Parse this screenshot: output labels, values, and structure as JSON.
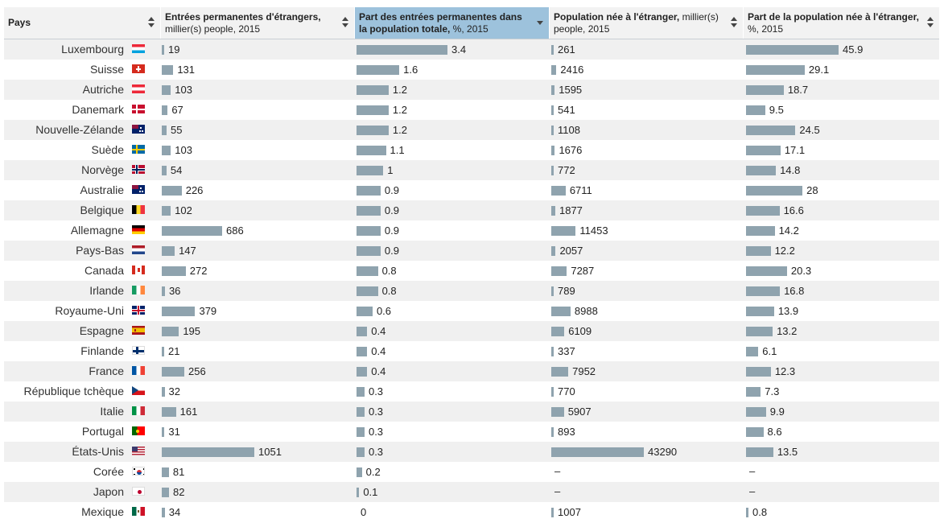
{
  "header": {
    "country": "Pays",
    "col1_bold": "Entrées permanentes d'étrangers,",
    "col1_rest": "millier(s) people, 2015",
    "col2_bold": "Part des entrées permanentes dans la population totale,",
    "col2_rest": " %, 2015",
    "col3_bold": "Population née à l'étranger,",
    "col3_rest": " millier(s) people, 2015",
    "col4_bold": "Part de la population née à l'étranger,",
    "col4_rest": "%, 2015"
  },
  "colors": {
    "bar": "#8fa3ae",
    "active_header": "#9dc2dc"
  },
  "rows": [
    {
      "name": "Luxembourg",
      "flag": "luxembourg-flag",
      "v1": "19",
      "v2": "3.4",
      "v3": "261",
      "v4": "45.9"
    },
    {
      "name": "Suisse",
      "flag": "switzerland-flag",
      "v1": "131",
      "v2": "1.6",
      "v3": "2416",
      "v4": "29.1"
    },
    {
      "name": "Autriche",
      "flag": "austria-flag",
      "v1": "103",
      "v2": "1.2",
      "v3": "1595",
      "v4": "18.7"
    },
    {
      "name": "Danemark",
      "flag": "denmark-flag",
      "v1": "67",
      "v2": "1.2",
      "v3": "541",
      "v4": "9.5"
    },
    {
      "name": "Nouvelle-Zélande",
      "flag": "new-zealand-flag",
      "v1": "55",
      "v2": "1.2",
      "v3": "1108",
      "v4": "24.5"
    },
    {
      "name": "Suède",
      "flag": "sweden-flag",
      "v1": "103",
      "v2": "1.1",
      "v3": "1676",
      "v4": "17.1"
    },
    {
      "name": "Norvège",
      "flag": "norway-flag",
      "v1": "54",
      "v2": "1",
      "v3": "772",
      "v4": "14.8"
    },
    {
      "name": "Australie",
      "flag": "australia-flag",
      "v1": "226",
      "v2": "0.9",
      "v3": "6711",
      "v4": "28"
    },
    {
      "name": "Belgique",
      "flag": "belgium-flag",
      "v1": "102",
      "v2": "0.9",
      "v3": "1877",
      "v4": "16.6"
    },
    {
      "name": "Allemagne",
      "flag": "germany-flag",
      "v1": "686",
      "v2": "0.9",
      "v3": "11453",
      "v4": "14.2"
    },
    {
      "name": "Pays-Bas",
      "flag": "netherlands-flag",
      "v1": "147",
      "v2": "0.9",
      "v3": "2057",
      "v4": "12.2"
    },
    {
      "name": "Canada",
      "flag": "canada-flag",
      "v1": "272",
      "v2": "0.8",
      "v3": "7287",
      "v4": "20.3"
    },
    {
      "name": "Irlande",
      "flag": "ireland-flag",
      "v1": "36",
      "v2": "0.8",
      "v3": "789",
      "v4": "16.8"
    },
    {
      "name": "Royaume-Uni",
      "flag": "uk-flag",
      "v1": "379",
      "v2": "0.6",
      "v3": "8988",
      "v4": "13.9"
    },
    {
      "name": "Espagne",
      "flag": "spain-flag",
      "v1": "195",
      "v2": "0.4",
      "v3": "6109",
      "v4": "13.2"
    },
    {
      "name": "Finlande",
      "flag": "finland-flag",
      "v1": "21",
      "v2": "0.4",
      "v3": "337",
      "v4": "6.1"
    },
    {
      "name": "France",
      "flag": "france-flag",
      "v1": "256",
      "v2": "0.4",
      "v3": "7952",
      "v4": "12.3"
    },
    {
      "name": "République tchèque",
      "flag": "czech-flag",
      "v1": "32",
      "v2": "0.3",
      "v3": "770",
      "v4": "7.3"
    },
    {
      "name": "Italie",
      "flag": "italy-flag",
      "v1": "161",
      "v2": "0.3",
      "v3": "5907",
      "v4": "9.9"
    },
    {
      "name": "Portugal",
      "flag": "portugal-flag",
      "v1": "31",
      "v2": "0.3",
      "v3": "893",
      "v4": "8.6"
    },
    {
      "name": "États-Unis",
      "flag": "usa-flag",
      "v1": "1051",
      "v2": "0.3",
      "v3": "43290",
      "v4": "13.5"
    },
    {
      "name": "Corée",
      "flag": "korea-flag",
      "v1": "81",
      "v2": "0.2",
      "v3": "–",
      "v4": "–"
    },
    {
      "name": "Japon",
      "flag": "japan-flag",
      "v1": "82",
      "v2": "0.1",
      "v3": "–",
      "v4": "–"
    },
    {
      "name": "Mexique",
      "flag": "mexico-flag",
      "v1": "34",
      "v2": "0",
      "v3": "1007",
      "v4": "0.8"
    }
  ]
}
